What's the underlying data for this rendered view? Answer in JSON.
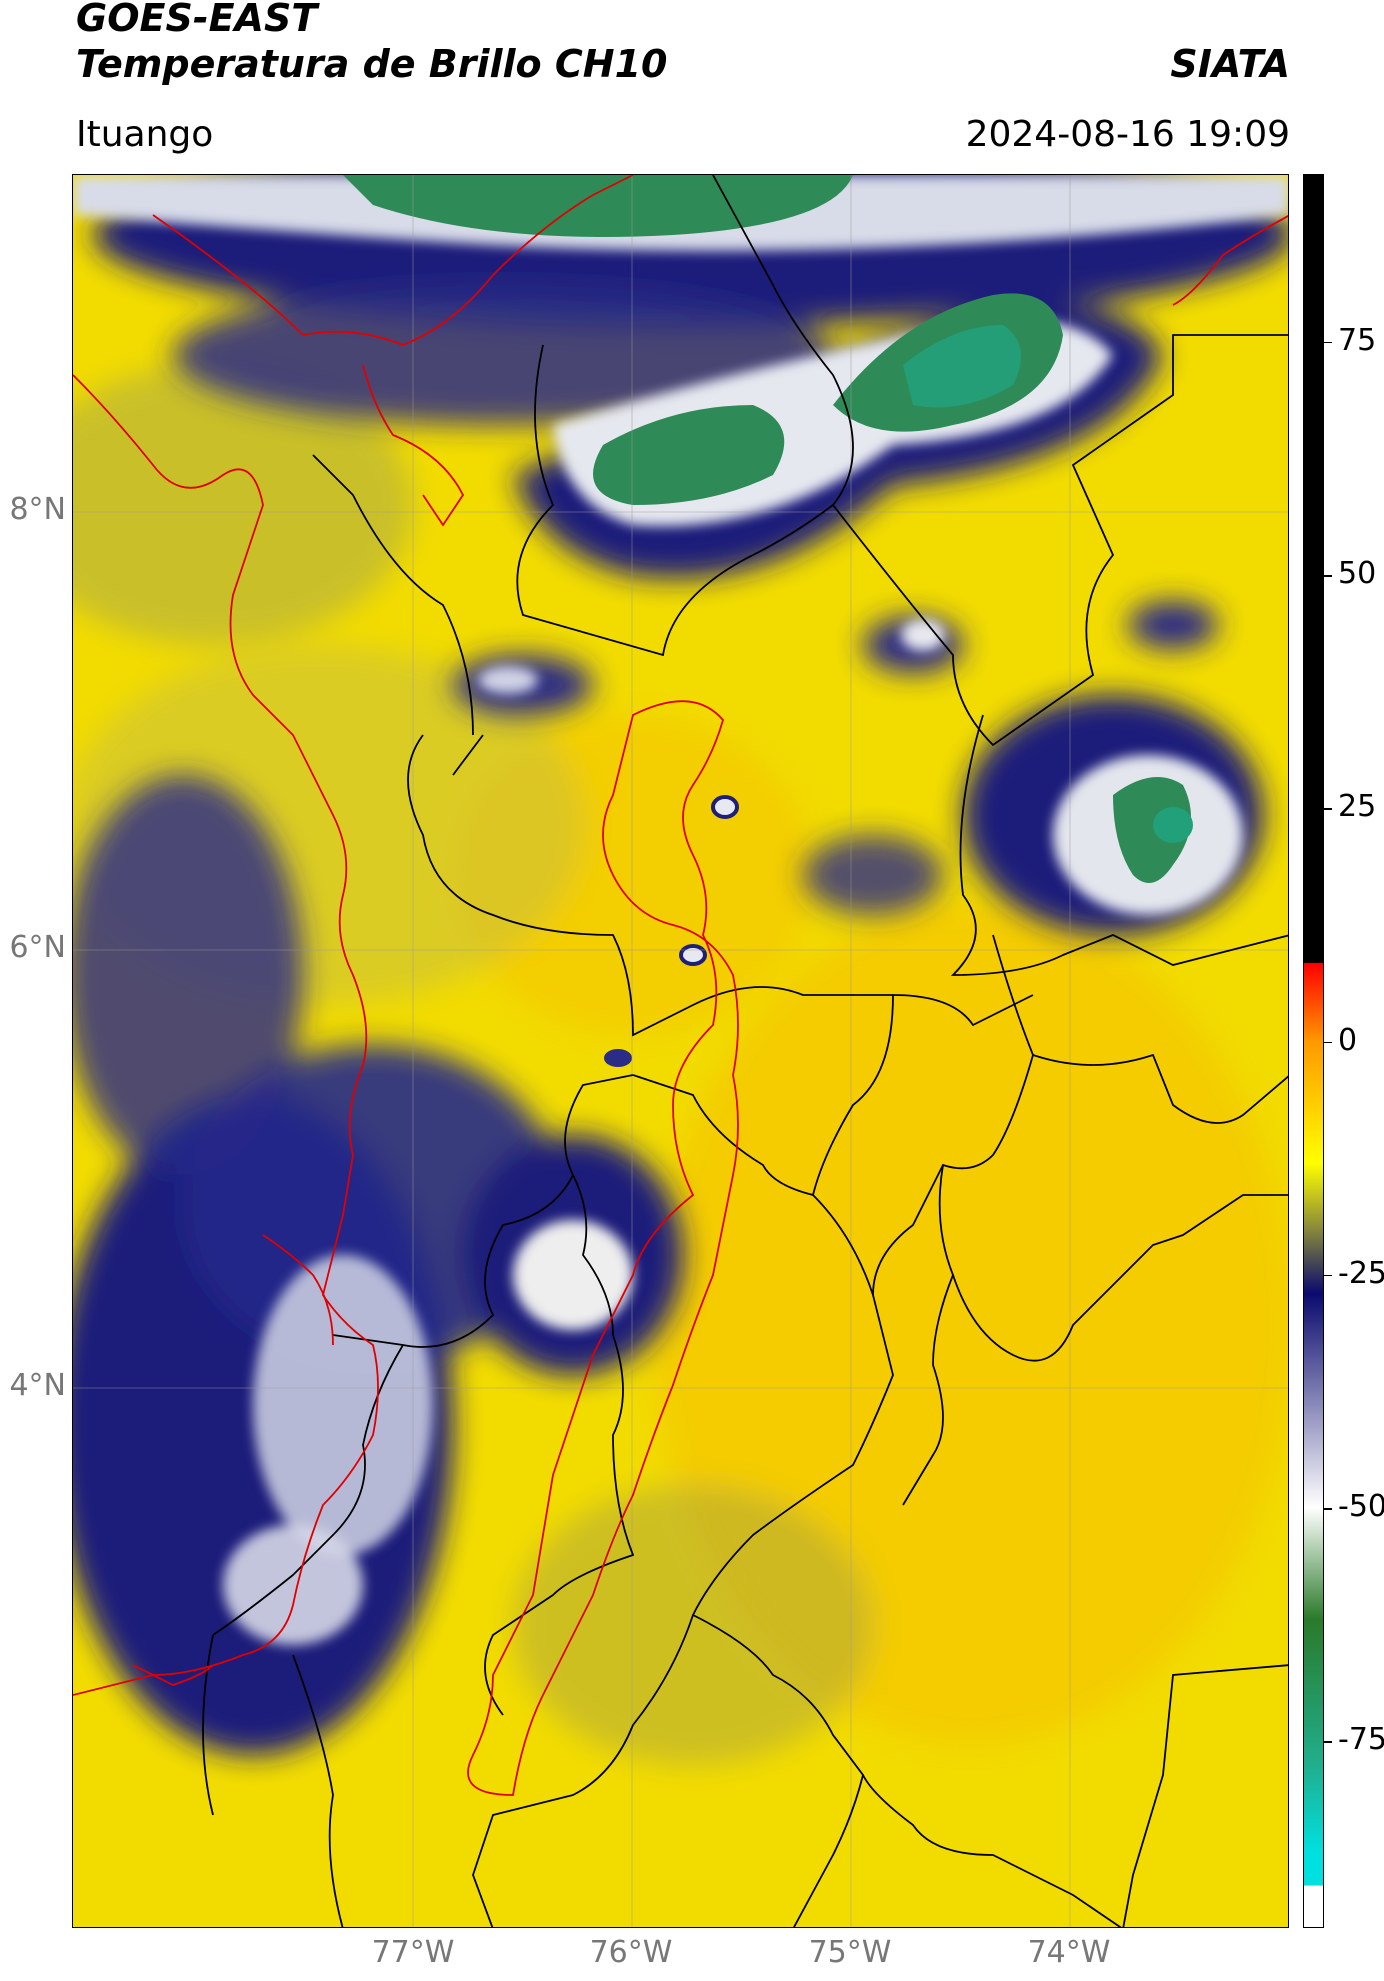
{
  "header": {
    "satellite": "GOES-EAST",
    "product": "Temperatura de Brillo CH10",
    "organization": "SIATA",
    "region": "Ituango",
    "datetime": "2024-08-16 19:09"
  },
  "map": {
    "lat_labels": [
      "8°N",
      "6°N",
      "4°N"
    ],
    "lon_labels": [
      "77°W",
      "76°W",
      "75°W",
      "74°W"
    ],
    "colors": {
      "background_warm": "#f2df00",
      "border_national": "#e00000",
      "border_departments": "#000000",
      "cold_cloud": "#1d1f7a",
      "very_cold_cloud": "#2e8b57"
    }
  },
  "colorbar": {
    "ticks": [
      "75",
      "50",
      "25",
      "0",
      "-25",
      "-50",
      "-75"
    ],
    "range": [
      -95,
      93
    ],
    "colors": {
      "warmest": "#000000",
      "warm_red": "#ff0000",
      "warm_orange": "#ff9900",
      "yellow": "#ffff00",
      "olive": "#8a8a3a",
      "navy": "#0a0a6e",
      "white": "#ffffff",
      "green": "#2a7a2a",
      "teal": "#20b090",
      "cyan": "#00e0e0"
    }
  }
}
